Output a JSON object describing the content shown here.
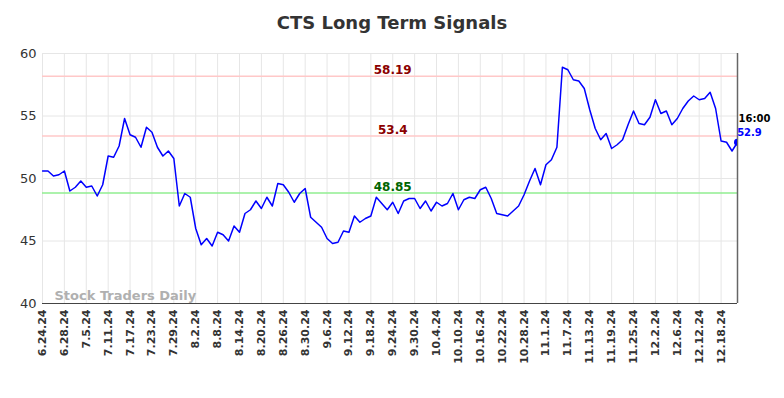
{
  "chart_data": {
    "type": "line",
    "title": "CTS Long Term Signals",
    "categories": [
      "6.24.24",
      null,
      null,
      null,
      "6.28.24",
      null,
      null,
      null,
      "7.5.24",
      null,
      null,
      null,
      "7.11.24",
      null,
      null,
      null,
      "7.17.24",
      null,
      null,
      null,
      "7.23.24",
      null,
      null,
      null,
      "7.29.24",
      null,
      null,
      null,
      "8.2.24",
      null,
      null,
      null,
      "8.8.24",
      null,
      null,
      null,
      "8.14.24",
      null,
      null,
      null,
      "8.20.24",
      null,
      null,
      null,
      "8.26.24",
      null,
      null,
      null,
      "8.30.24",
      null,
      null,
      null,
      "9.6.24",
      null,
      null,
      null,
      "9.12.24",
      null,
      null,
      null,
      "9.18.24",
      null,
      null,
      null,
      "9.24.24",
      null,
      null,
      null,
      "9.30.24",
      null,
      null,
      null,
      "10.4.24",
      null,
      null,
      null,
      "10.10.24",
      null,
      null,
      null,
      "10.16.24",
      null,
      null,
      null,
      "10.22.24",
      null,
      null,
      null,
      "10.28.24",
      null,
      null,
      null,
      "11.1.24",
      null,
      null,
      null,
      "11.7.24",
      null,
      null,
      null,
      "11.13.24",
      null,
      null,
      null,
      "11.19.24",
      null,
      null,
      null,
      "11.25.24",
      null,
      null,
      null,
      "12.2.24",
      null,
      null,
      null,
      "12.6.24",
      null,
      null,
      null,
      "12.12.24",
      null,
      null,
      null,
      "12.18.24",
      null,
      null,
      null
    ],
    "values": [
      50.6,
      50.6,
      50.2,
      50.3,
      50.6,
      49.0,
      49.3,
      49.8,
      49.3,
      49.4,
      48.6,
      49.5,
      51.8,
      51.7,
      52.6,
      54.8,
      53.5,
      53.3,
      52.5,
      54.1,
      53.7,
      52.5,
      51.8,
      52.2,
      51.6,
      47.8,
      48.8,
      48.5,
      46.0,
      44.7,
      45.2,
      44.6,
      45.7,
      45.5,
      45.0,
      46.2,
      45.7,
      47.2,
      47.5,
      48.2,
      47.6,
      48.5,
      47.8,
      49.6,
      49.5,
      48.9,
      48.1,
      48.8,
      49.2,
      46.9,
      46.5,
      46.1,
      45.2,
      44.8,
      44.9,
      45.8,
      45.7,
      47.0,
      46.5,
      46.8,
      47.0,
      48.5,
      48.0,
      47.5,
      48.1,
      47.2,
      48.2,
      48.4,
      48.4,
      47.6,
      48.2,
      47.4,
      48.1,
      47.8,
      48.0,
      48.8,
      47.5,
      48.3,
      48.5,
      48.4,
      49.1,
      49.3,
      48.4,
      47.2,
      47.1,
      47.0,
      47.4,
      47.8,
      48.7,
      49.8,
      50.8,
      49.5,
      51.1,
      51.5,
      52.5,
      58.9,
      58.7,
      57.9,
      57.8,
      57.2,
      55.5,
      54.0,
      53.1,
      53.6,
      52.4,
      52.7,
      53.1,
      54.3,
      55.4,
      54.4,
      54.3,
      54.9,
      56.3,
      55.2,
      55.4,
      54.3,
      54.8,
      55.6,
      56.2,
      56.6,
      56.3,
      56.4,
      56.9,
      55.6,
      53.0,
      52.9,
      52.2,
      52.9
    ],
    "color": "#0000ff",
    "ylim": [
      40,
      60
    ],
    "yticks": [
      40,
      45,
      50,
      55,
      60
    ],
    "grid": true,
    "reference_lines": [
      {
        "value": 58.19,
        "color": "#ffc8c8",
        "label_color": "#8b0000"
      },
      {
        "value": 53.4,
        "color": "#ffc8c8",
        "label_color": "#8b0000"
      },
      {
        "value": 48.85,
        "color": "#90ee90",
        "label_color": "#006400"
      }
    ],
    "last_label": "16:00",
    "watermark": "Stock Traders Daily"
  }
}
